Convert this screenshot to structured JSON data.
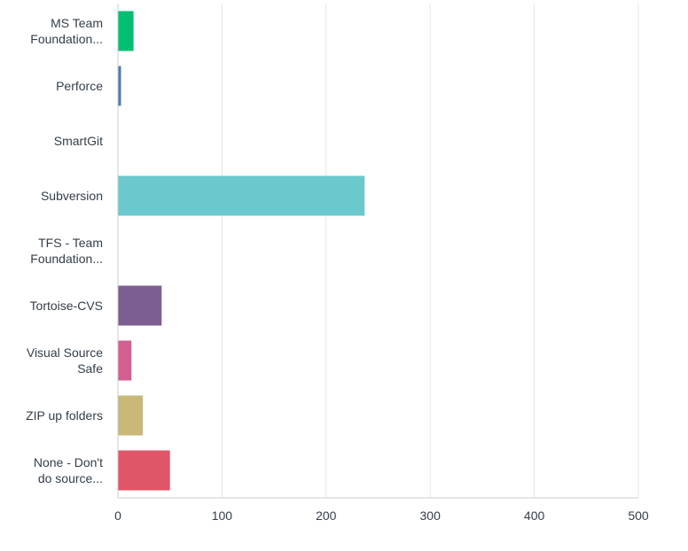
{
  "chart_data": {
    "type": "bar",
    "orientation": "horizontal",
    "categories": [
      [
        "MS Team",
        "Foundation..."
      ],
      [
        "Perforce"
      ],
      [
        "SmartGit"
      ],
      [
        "Subversion"
      ],
      [
        "TFS - Team",
        "Foundation..."
      ],
      [
        "Tortoise-CVS"
      ],
      [
        "Visual Source",
        "Safe"
      ],
      [
        "ZIP up folders"
      ],
      [
        "None - Don't",
        "do source..."
      ]
    ],
    "values": [
      15,
      3,
      0,
      237,
      0,
      42,
      13,
      24,
      50
    ],
    "colors": [
      "#00bf6f",
      "#507cb6",
      "#f9be00",
      "#6bc8cd",
      "#ff8b4f",
      "#7d5e90",
      "#d25f90",
      "#c9b877",
      "#e05567"
    ],
    "xlim": [
      0,
      500
    ],
    "xticks": [
      0,
      100,
      200,
      300,
      400,
      500
    ],
    "title": "",
    "xlabel": "",
    "ylabel": "",
    "grid": true
  }
}
